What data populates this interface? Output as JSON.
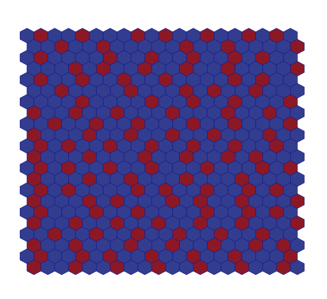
{
  "grid": {
    "colors": [
      "#323d90",
      "#8c1826"
    ],
    "stroke": "#1c1f86",
    "cells": [
      [
        0,
        1,
        0,
        0,
        1,
        0,
        0,
        0,
        1,
        0,
        1,
        0,
        0,
        1,
        0,
        0,
        1,
        0,
        1,
        0
      ],
      [
        0,
        0,
        1,
        0,
        0,
        1,
        0,
        0,
        0,
        0,
        0,
        1,
        0,
        0,
        1,
        0,
        0,
        0,
        0,
        1
      ],
      [
        0,
        1,
        0,
        0,
        0,
        0,
        1,
        0,
        0,
        1,
        0,
        0,
        1,
        0,
        0,
        1,
        0,
        1,
        0,
        0
      ],
      [
        0,
        0,
        0,
        1,
        0,
        1,
        0,
        0,
        1,
        0,
        0,
        1,
        0,
        0,
        1,
        0,
        0,
        0,
        0,
        1
      ],
      [
        0,
        1,
        0,
        0,
        1,
        0,
        0,
        1,
        0,
        0,
        1,
        0,
        0,
        0,
        0,
        1,
        0,
        1,
        0,
        0
      ],
      [
        0,
        0,
        1,
        0,
        0,
        0,
        0,
        1,
        0,
        0,
        0,
        1,
        0,
        1,
        0,
        0,
        1,
        0,
        0,
        0
      ],
      [
        0,
        0,
        0,
        0,
        1,
        0,
        0,
        0,
        0,
        1,
        0,
        0,
        1,
        0,
        0,
        1,
        0,
        0,
        0,
        1
      ],
      [
        1,
        0,
        0,
        1,
        0,
        0,
        1,
        0,
        0,
        0,
        1,
        0,
        0,
        0,
        1,
        0,
        0,
        1,
        0,
        0
      ],
      [
        0,
        0,
        1,
        0,
        0,
        1,
        0,
        0,
        1,
        0,
        0,
        0,
        1,
        0,
        0,
        1,
        0,
        0,
        0,
        1
      ],
      [
        1,
        0,
        0,
        0,
        1,
        0,
        0,
        1,
        0,
        0,
        1,
        0,
        0,
        1,
        0,
        0,
        0,
        1,
        0,
        0
      ],
      [
        0,
        1,
        0,
        1,
        0,
        0,
        1,
        0,
        0,
        1,
        0,
        0,
        1,
        0,
        0,
        1,
        0,
        0,
        1,
        0
      ],
      [
        1,
        0,
        0,
        0,
        1,
        0,
        0,
        0,
        1,
        0,
        0,
        1,
        0,
        0,
        1,
        0,
        1,
        0,
        0,
        0
      ],
      [
        0,
        1,
        0,
        1,
        0,
        0,
        1,
        0,
        0,
        1,
        0,
        0,
        0,
        1,
        0,
        0,
        0,
        1,
        0,
        1
      ],
      [
        1,
        0,
        0,
        0,
        1,
        0,
        0,
        1,
        0,
        0,
        0,
        1,
        0,
        0,
        0,
        1,
        0,
        0,
        0,
        0
      ],
      [
        0,
        1,
        0,
        1,
        0,
        0,
        0,
        0,
        1,
        0,
        1,
        0,
        0,
        1,
        0,
        0,
        1,
        0,
        1,
        0
      ],
      [
        1,
        0,
        0,
        0,
        1,
        0,
        1,
        0,
        0,
        0,
        1,
        0,
        1,
        0,
        0,
        1,
        0,
        0,
        0,
        1
      ],
      [
        0,
        1,
        0,
        0,
        0,
        1,
        0,
        0,
        1,
        0,
        0,
        0,
        0,
        1,
        0,
        0,
        1,
        0,
        1,
        0
      ],
      [
        1,
        0,
        0,
        1,
        0,
        0,
        1,
        0,
        0,
        1,
        0,
        0,
        1,
        0,
        0,
        1,
        0,
        0,
        0,
        1
      ],
      [
        0,
        0,
        1,
        0,
        0,
        1,
        0,
        0,
        1,
        0,
        0,
        1,
        0,
        0,
        1,
        0,
        0,
        1,
        0,
        0
      ],
      [
        1,
        0,
        0,
        1,
        0,
        0,
        0,
        1,
        0,
        0,
        1,
        0,
        0,
        1,
        0,
        0,
        1,
        0,
        1,
        0
      ],
      [
        0,
        1,
        0,
        0,
        1,
        0,
        1,
        0,
        0,
        1,
        0,
        0,
        1,
        0,
        0,
        1,
        0,
        0,
        0,
        1
      ],
      [
        1,
        0,
        0,
        1,
        0,
        0,
        1,
        0,
        0,
        1,
        0,
        0,
        1,
        0,
        0,
        1,
        0,
        0,
        1,
        0
      ]
    ]
  }
}
